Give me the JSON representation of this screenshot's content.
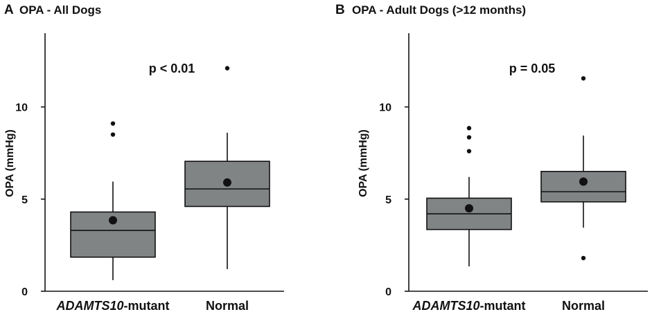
{
  "chart_data": [
    {
      "type": "box",
      "panel_letter": "A",
      "title": "OPA - All Dogs",
      "ylabel": "OPA (mmHg)",
      "xlabel": "",
      "ylim": [
        0,
        14
      ],
      "yticks": [
        0,
        5,
        10
      ],
      "annotation": "p < 0.01",
      "categories": [
        {
          "label_bold_italic": "ADAMTS10",
          "label_suffix": "-mutant",
          "min": 0.6,
          "q1": 1.85,
          "median": 3.3,
          "q3": 4.3,
          "max": 5.95,
          "mean": 3.85,
          "outliers": [
            8.5,
            9.1
          ]
        },
        {
          "label_bold_italic": "",
          "label_suffix": "Normal",
          "min": 1.2,
          "q1": 4.6,
          "median": 5.55,
          "q3": 7.05,
          "max": 8.6,
          "mean": 5.9,
          "outliers": [
            12.1
          ]
        }
      ]
    },
    {
      "type": "box",
      "panel_letter": "B",
      "title": "OPA - Adult Dogs (>12 months)",
      "ylabel": "OPA (mmHg)",
      "xlabel": "",
      "ylim": [
        0,
        14
      ],
      "yticks": [
        0,
        5,
        10
      ],
      "annotation": "p = 0.05",
      "categories": [
        {
          "label_bold_italic": "ADAMTS10",
          "label_suffix": "-mutant",
          "min": 1.35,
          "q1": 3.35,
          "median": 4.2,
          "q3": 5.05,
          "max": 6.2,
          "mean": 4.5,
          "outliers": [
            7.6,
            8.35,
            8.85
          ]
        },
        {
          "label_bold_italic": "",
          "label_suffix": "Normal",
          "min": 3.45,
          "q1": 4.85,
          "median": 5.4,
          "q3": 6.5,
          "max": 8.45,
          "mean": 5.95,
          "outliers": [
            1.8,
            11.55
          ]
        }
      ]
    }
  ]
}
